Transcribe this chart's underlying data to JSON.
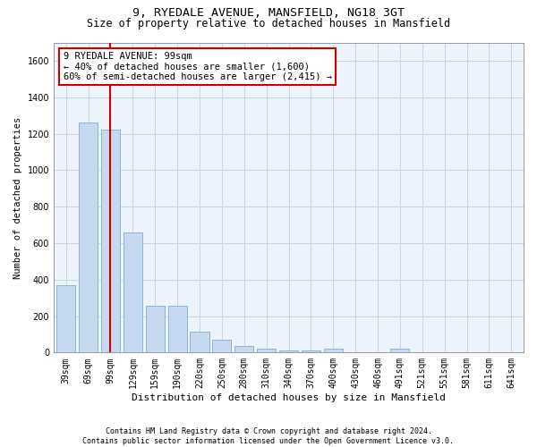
{
  "title_line1": "9, RYEDALE AVENUE, MANSFIELD, NG18 3GT",
  "title_line2": "Size of property relative to detached houses in Mansfield",
  "xlabel": "Distribution of detached houses by size in Mansfield",
  "ylabel": "Number of detached properties",
  "footnote": "Contains HM Land Registry data © Crown copyright and database right 2024.\nContains public sector information licensed under the Open Government Licence v3.0.",
  "categories": [
    "39sqm",
    "69sqm",
    "99sqm",
    "129sqm",
    "159sqm",
    "190sqm",
    "220sqm",
    "250sqm",
    "280sqm",
    "310sqm",
    "340sqm",
    "370sqm",
    "400sqm",
    "430sqm",
    "460sqm",
    "491sqm",
    "521sqm",
    "551sqm",
    "581sqm",
    "611sqm",
    "641sqm"
  ],
  "values": [
    370,
    1260,
    1220,
    660,
    255,
    255,
    115,
    70,
    38,
    22,
    13,
    13,
    20,
    0,
    0,
    20,
    0,
    0,
    0,
    0,
    0
  ],
  "bar_color": "#c6d9f0",
  "bar_edge_color": "#7bafd4",
  "highlight_bar_index": 2,
  "highlight_line_color": "#cc0000",
  "annotation_box_text": "9 RYEDALE AVENUE: 99sqm\n← 40% of detached houses are smaller (1,600)\n60% of semi-detached houses are larger (2,415) →",
  "annotation_box_color": "#cc0000",
  "ylim": [
    0,
    1700
  ],
  "yticks": [
    0,
    200,
    400,
    600,
    800,
    1000,
    1200,
    1400,
    1600
  ],
  "grid_color": "#c8d8e8",
  "bg_color": "#eef4fb",
  "title_fontsize": 9.5,
  "subtitle_fontsize": 8.5,
  "axis_label_fontsize": 8,
  "tick_fontsize": 7,
  "annotation_fontsize": 7.5,
  "ylabel_fontsize": 7.5,
  "footnote_fontsize": 6
}
